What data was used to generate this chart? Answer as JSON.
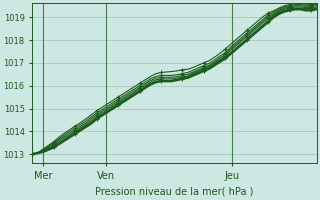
{
  "xlabel": "Pression niveau de la mer( hPa )",
  "background_color": "#cde8e2",
  "grid_color": "#aaccc6",
  "line_color": "#1a5c1a",
  "marker_color": "#1a5c1a",
  "ylim": [
    1012.6,
    1019.6
  ],
  "xlim": [
    0,
    54
  ],
  "yticks": [
    1013,
    1014,
    1015,
    1016,
    1017,
    1018,
    1019
  ],
  "xtick_positions": [
    2,
    14,
    38
  ],
  "xtick_labels": [
    "Mer",
    "Ven",
    "Jeu"
  ],
  "vline_positions": [
    2,
    14,
    38
  ],
  "figsize": [
    3.2,
    2.0
  ],
  "dpi": 100,
  "series": [
    [
      1013.0,
      1013.05,
      1013.1,
      1013.2,
      1013.3,
      1013.45,
      1013.6,
      1013.75,
      1013.9,
      1014.05,
      1014.2,
      1014.35,
      1014.55,
      1014.7,
      1014.85,
      1015.0,
      1015.15,
      1015.3,
      1015.45,
      1015.6,
      1015.75,
      1015.9,
      1016.05,
      1016.15,
      1016.2,
      1016.2,
      1016.2,
      1016.25,
      1016.3,
      1016.35,
      1016.45,
      1016.55,
      1016.65,
      1016.75,
      1016.9,
      1017.05,
      1017.2,
      1017.4,
      1017.6,
      1017.8,
      1018.0,
      1018.2,
      1018.4,
      1018.6,
      1018.8,
      1019.0,
      1019.15,
      1019.25,
      1019.3,
      1019.35,
      1019.35,
      1019.3,
      1019.3,
      1019.35
    ],
    [
      1013.0,
      1013.05,
      1013.12,
      1013.22,
      1013.35,
      1013.48,
      1013.63,
      1013.78,
      1013.95,
      1014.1,
      1014.25,
      1014.4,
      1014.58,
      1014.73,
      1014.88,
      1015.03,
      1015.18,
      1015.33,
      1015.48,
      1015.63,
      1015.78,
      1015.93,
      1016.08,
      1016.18,
      1016.23,
      1016.23,
      1016.23,
      1016.28,
      1016.33,
      1016.38,
      1016.5,
      1016.6,
      1016.7,
      1016.8,
      1016.95,
      1017.1,
      1017.25,
      1017.45,
      1017.65,
      1017.85,
      1018.05,
      1018.25,
      1018.45,
      1018.65,
      1018.85,
      1019.05,
      1019.2,
      1019.3,
      1019.35,
      1019.4,
      1019.4,
      1019.38,
      1019.38,
      1019.4
    ],
    [
      1013.0,
      1013.05,
      1013.15,
      1013.25,
      1013.4,
      1013.55,
      1013.7,
      1013.85,
      1014.0,
      1014.15,
      1014.3,
      1014.47,
      1014.65,
      1014.8,
      1014.95,
      1015.1,
      1015.25,
      1015.4,
      1015.55,
      1015.7,
      1015.85,
      1016.0,
      1016.15,
      1016.25,
      1016.3,
      1016.3,
      1016.3,
      1016.33,
      1016.38,
      1016.43,
      1016.55,
      1016.65,
      1016.75,
      1016.85,
      1017.0,
      1017.15,
      1017.3,
      1017.55,
      1017.75,
      1017.95,
      1018.15,
      1018.35,
      1018.55,
      1018.75,
      1018.95,
      1019.1,
      1019.25,
      1019.35,
      1019.4,
      1019.45,
      1019.45,
      1019.42,
      1019.42,
      1019.45
    ],
    [
      1013.0,
      1013.05,
      1013.17,
      1013.3,
      1013.45,
      1013.62,
      1013.77,
      1013.92,
      1014.07,
      1014.22,
      1014.37,
      1014.55,
      1014.72,
      1014.87,
      1015.02,
      1015.17,
      1015.32,
      1015.47,
      1015.62,
      1015.77,
      1015.92,
      1016.07,
      1016.22,
      1016.32,
      1016.37,
      1016.37,
      1016.37,
      1016.4,
      1016.45,
      1016.5,
      1016.6,
      1016.7,
      1016.8,
      1016.9,
      1017.05,
      1017.22,
      1017.37,
      1017.62,
      1017.82,
      1018.02,
      1018.22,
      1018.42,
      1018.62,
      1018.82,
      1019.02,
      1019.15,
      1019.3,
      1019.4,
      1019.45,
      1019.5,
      1019.5,
      1019.48,
      1019.48,
      1019.5
    ],
    [
      1013.0,
      1013.05,
      1013.2,
      1013.35,
      1013.5,
      1013.67,
      1013.84,
      1014.0,
      1014.15,
      1014.3,
      1014.45,
      1014.63,
      1014.8,
      1014.95,
      1015.1,
      1015.25,
      1015.4,
      1015.55,
      1015.7,
      1015.85,
      1016.0,
      1016.15,
      1016.3,
      1016.4,
      1016.45,
      1016.45,
      1016.45,
      1016.48,
      1016.53,
      1016.58,
      1016.68,
      1016.78,
      1016.88,
      1016.98,
      1017.13,
      1017.3,
      1017.45,
      1017.7,
      1017.9,
      1018.1,
      1018.3,
      1018.5,
      1018.7,
      1018.9,
      1019.1,
      1019.22,
      1019.35,
      1019.45,
      1019.5,
      1019.55,
      1019.55,
      1019.52,
      1019.52,
      1019.55
    ],
    [
      1013.0,
      1013.05,
      1013.22,
      1013.38,
      1013.55,
      1013.75,
      1013.92,
      1014.08,
      1014.23,
      1014.38,
      1014.55,
      1014.72,
      1014.9,
      1015.05,
      1015.2,
      1015.35,
      1015.5,
      1015.65,
      1015.8,
      1015.95,
      1016.1,
      1016.25,
      1016.4,
      1016.52,
      1016.58,
      1016.6,
      1016.62,
      1016.65,
      1016.7,
      1016.72,
      1016.8,
      1016.9,
      1017.0,
      1017.1,
      1017.25,
      1017.42,
      1017.6,
      1017.82,
      1018.02,
      1018.22,
      1018.42,
      1018.62,
      1018.82,
      1019.02,
      1019.18,
      1019.28,
      1019.4,
      1019.5,
      1019.55,
      1019.6,
      1019.6,
      1019.57,
      1019.57,
      1019.6
    ]
  ]
}
